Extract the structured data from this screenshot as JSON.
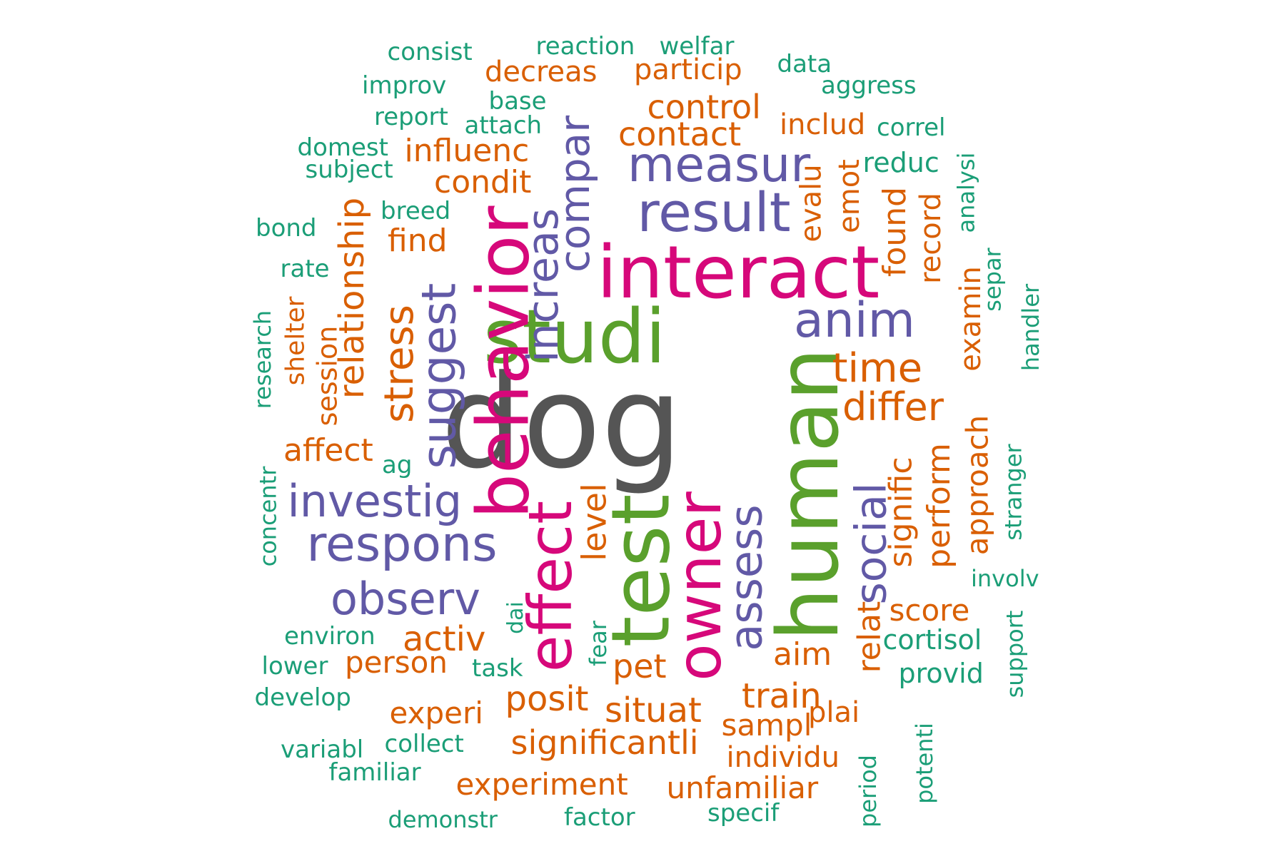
{
  "palette": {
    "tier1": "#555555",
    "tier2": "#d6087a",
    "tier3": "#5aa02c",
    "tier4": "#6159a6",
    "tier5": "#d95f02",
    "tier6": "#1b9e77"
  },
  "words": [
    {
      "text": "dog",
      "tier": "tier1"
    },
    {
      "text": "studi",
      "tier": "tier3"
    },
    {
      "text": "human",
      "tier": "tier3"
    },
    {
      "text": "test",
      "tier": "tier3"
    },
    {
      "text": "interact",
      "tier": "tier2"
    },
    {
      "text": "behavior",
      "tier": "tier2"
    },
    {
      "text": "owner",
      "tier": "tier2"
    },
    {
      "text": "effect",
      "tier": "tier2"
    },
    {
      "text": "result",
      "tier": "tier4"
    },
    {
      "text": "measur",
      "tier": "tier4"
    },
    {
      "text": "anim",
      "tier": "tier4"
    },
    {
      "text": "respons",
      "tier": "tier4"
    },
    {
      "text": "investig",
      "tier": "tier4"
    },
    {
      "text": "observ",
      "tier": "tier4"
    },
    {
      "text": "suggest",
      "tier": "tier4"
    },
    {
      "text": "increas",
      "tier": "tier4"
    },
    {
      "text": "compar",
      "tier": "tier4"
    },
    {
      "text": "social",
      "tier": "tier4"
    },
    {
      "text": "assess",
      "tier": "tier4"
    },
    {
      "text": "time",
      "tier": "tier5"
    },
    {
      "text": "differ",
      "tier": "tier5"
    },
    {
      "text": "stress",
      "tier": "tier5"
    },
    {
      "text": "relationship",
      "tier": "tier5"
    },
    {
      "text": "control",
      "tier": "tier5"
    },
    {
      "text": "contact",
      "tier": "tier5"
    },
    {
      "text": "influenc",
      "tier": "tier5"
    },
    {
      "text": "condit",
      "tier": "tier5"
    },
    {
      "text": "find",
      "tier": "tier5"
    },
    {
      "text": "affect",
      "tier": "tier5"
    },
    {
      "text": "activ",
      "tier": "tier5"
    },
    {
      "text": "person",
      "tier": "tier5"
    },
    {
      "text": "level",
      "tier": "tier5"
    },
    {
      "text": "posit",
      "tier": "tier5"
    },
    {
      "text": "situat",
      "tier": "tier5"
    },
    {
      "text": "pet",
      "tier": "tier5"
    },
    {
      "text": "train",
      "tier": "tier5"
    },
    {
      "text": "sampl",
      "tier": "tier5"
    },
    {
      "text": "plai",
      "tier": "tier5"
    },
    {
      "text": "individu",
      "tier": "tier5"
    },
    {
      "text": "significantli",
      "tier": "tier5"
    },
    {
      "text": "experi",
      "tier": "tier5"
    },
    {
      "text": "experiment",
      "tier": "tier5"
    },
    {
      "text": "unfamiliar",
      "tier": "tier5"
    },
    {
      "text": "aim",
      "tier": "tier5"
    },
    {
      "text": "relat",
      "tier": "tier5"
    },
    {
      "text": "score",
      "tier": "tier5"
    },
    {
      "text": "signific",
      "tier": "tier5"
    },
    {
      "text": "perform",
      "tier": "tier5"
    },
    {
      "text": "approach",
      "tier": "tier5"
    },
    {
      "text": "found",
      "tier": "tier5"
    },
    {
      "text": "record",
      "tier": "tier5"
    },
    {
      "text": "evalu",
      "tier": "tier5"
    },
    {
      "text": "emot",
      "tier": "tier5"
    },
    {
      "text": "includ",
      "tier": "tier5"
    },
    {
      "text": "examin",
      "tier": "tier5"
    },
    {
      "text": "decreas",
      "tier": "tier5"
    },
    {
      "text": "particip",
      "tier": "tier5"
    },
    {
      "text": "session",
      "tier": "tier5"
    },
    {
      "text": "shelter",
      "tier": "tier5"
    },
    {
      "text": "consist",
      "tier": "tier6"
    },
    {
      "text": "reaction",
      "tier": "tier6"
    },
    {
      "text": "welfar",
      "tier": "tier6"
    },
    {
      "text": "data",
      "tier": "tier6"
    },
    {
      "text": "improv",
      "tier": "tier6"
    },
    {
      "text": "aggress",
      "tier": "tier6"
    },
    {
      "text": "base",
      "tier": "tier6"
    },
    {
      "text": "report",
      "tier": "tier6"
    },
    {
      "text": "attach",
      "tier": "tier6"
    },
    {
      "text": "correl",
      "tier": "tier6"
    },
    {
      "text": "domest",
      "tier": "tier6"
    },
    {
      "text": "subject",
      "tier": "tier6"
    },
    {
      "text": "reduc",
      "tier": "tier6"
    },
    {
      "text": "analysi",
      "tier": "tier6"
    },
    {
      "text": "breed",
      "tier": "tier6"
    },
    {
      "text": "bond",
      "tier": "tier6"
    },
    {
      "text": "rate",
      "tier": "tier6"
    },
    {
      "text": "separ",
      "tier": "tier6"
    },
    {
      "text": "handler",
      "tier": "tier6"
    },
    {
      "text": "research",
      "tier": "tier6"
    },
    {
      "text": "ag",
      "tier": "tier6"
    },
    {
      "text": "stranger",
      "tier": "tier6"
    },
    {
      "text": "concentr",
      "tier": "tier6"
    },
    {
      "text": "involv",
      "tier": "tier6"
    },
    {
      "text": "environ",
      "tier": "tier6"
    },
    {
      "text": "dai",
      "tier": "tier6"
    },
    {
      "text": "cortisol",
      "tier": "tier6"
    },
    {
      "text": "support",
      "tier": "tier6"
    },
    {
      "text": "lower",
      "tier": "tier6"
    },
    {
      "text": "task",
      "tier": "tier6"
    },
    {
      "text": "fear",
      "tier": "tier6"
    },
    {
      "text": "provid",
      "tier": "tier6"
    },
    {
      "text": "develop",
      "tier": "tier6"
    },
    {
      "text": "collect",
      "tier": "tier6"
    },
    {
      "text": "variabl",
      "tier": "tier6"
    },
    {
      "text": "familiar",
      "tier": "tier6"
    },
    {
      "text": "potenti",
      "tier": "tier6"
    },
    {
      "text": "demonstr",
      "tier": "tier6"
    },
    {
      "text": "factor",
      "tier": "tier6"
    },
    {
      "text": "specif",
      "tier": "tier6"
    },
    {
      "text": "period",
      "tier": "tier6"
    }
  ]
}
